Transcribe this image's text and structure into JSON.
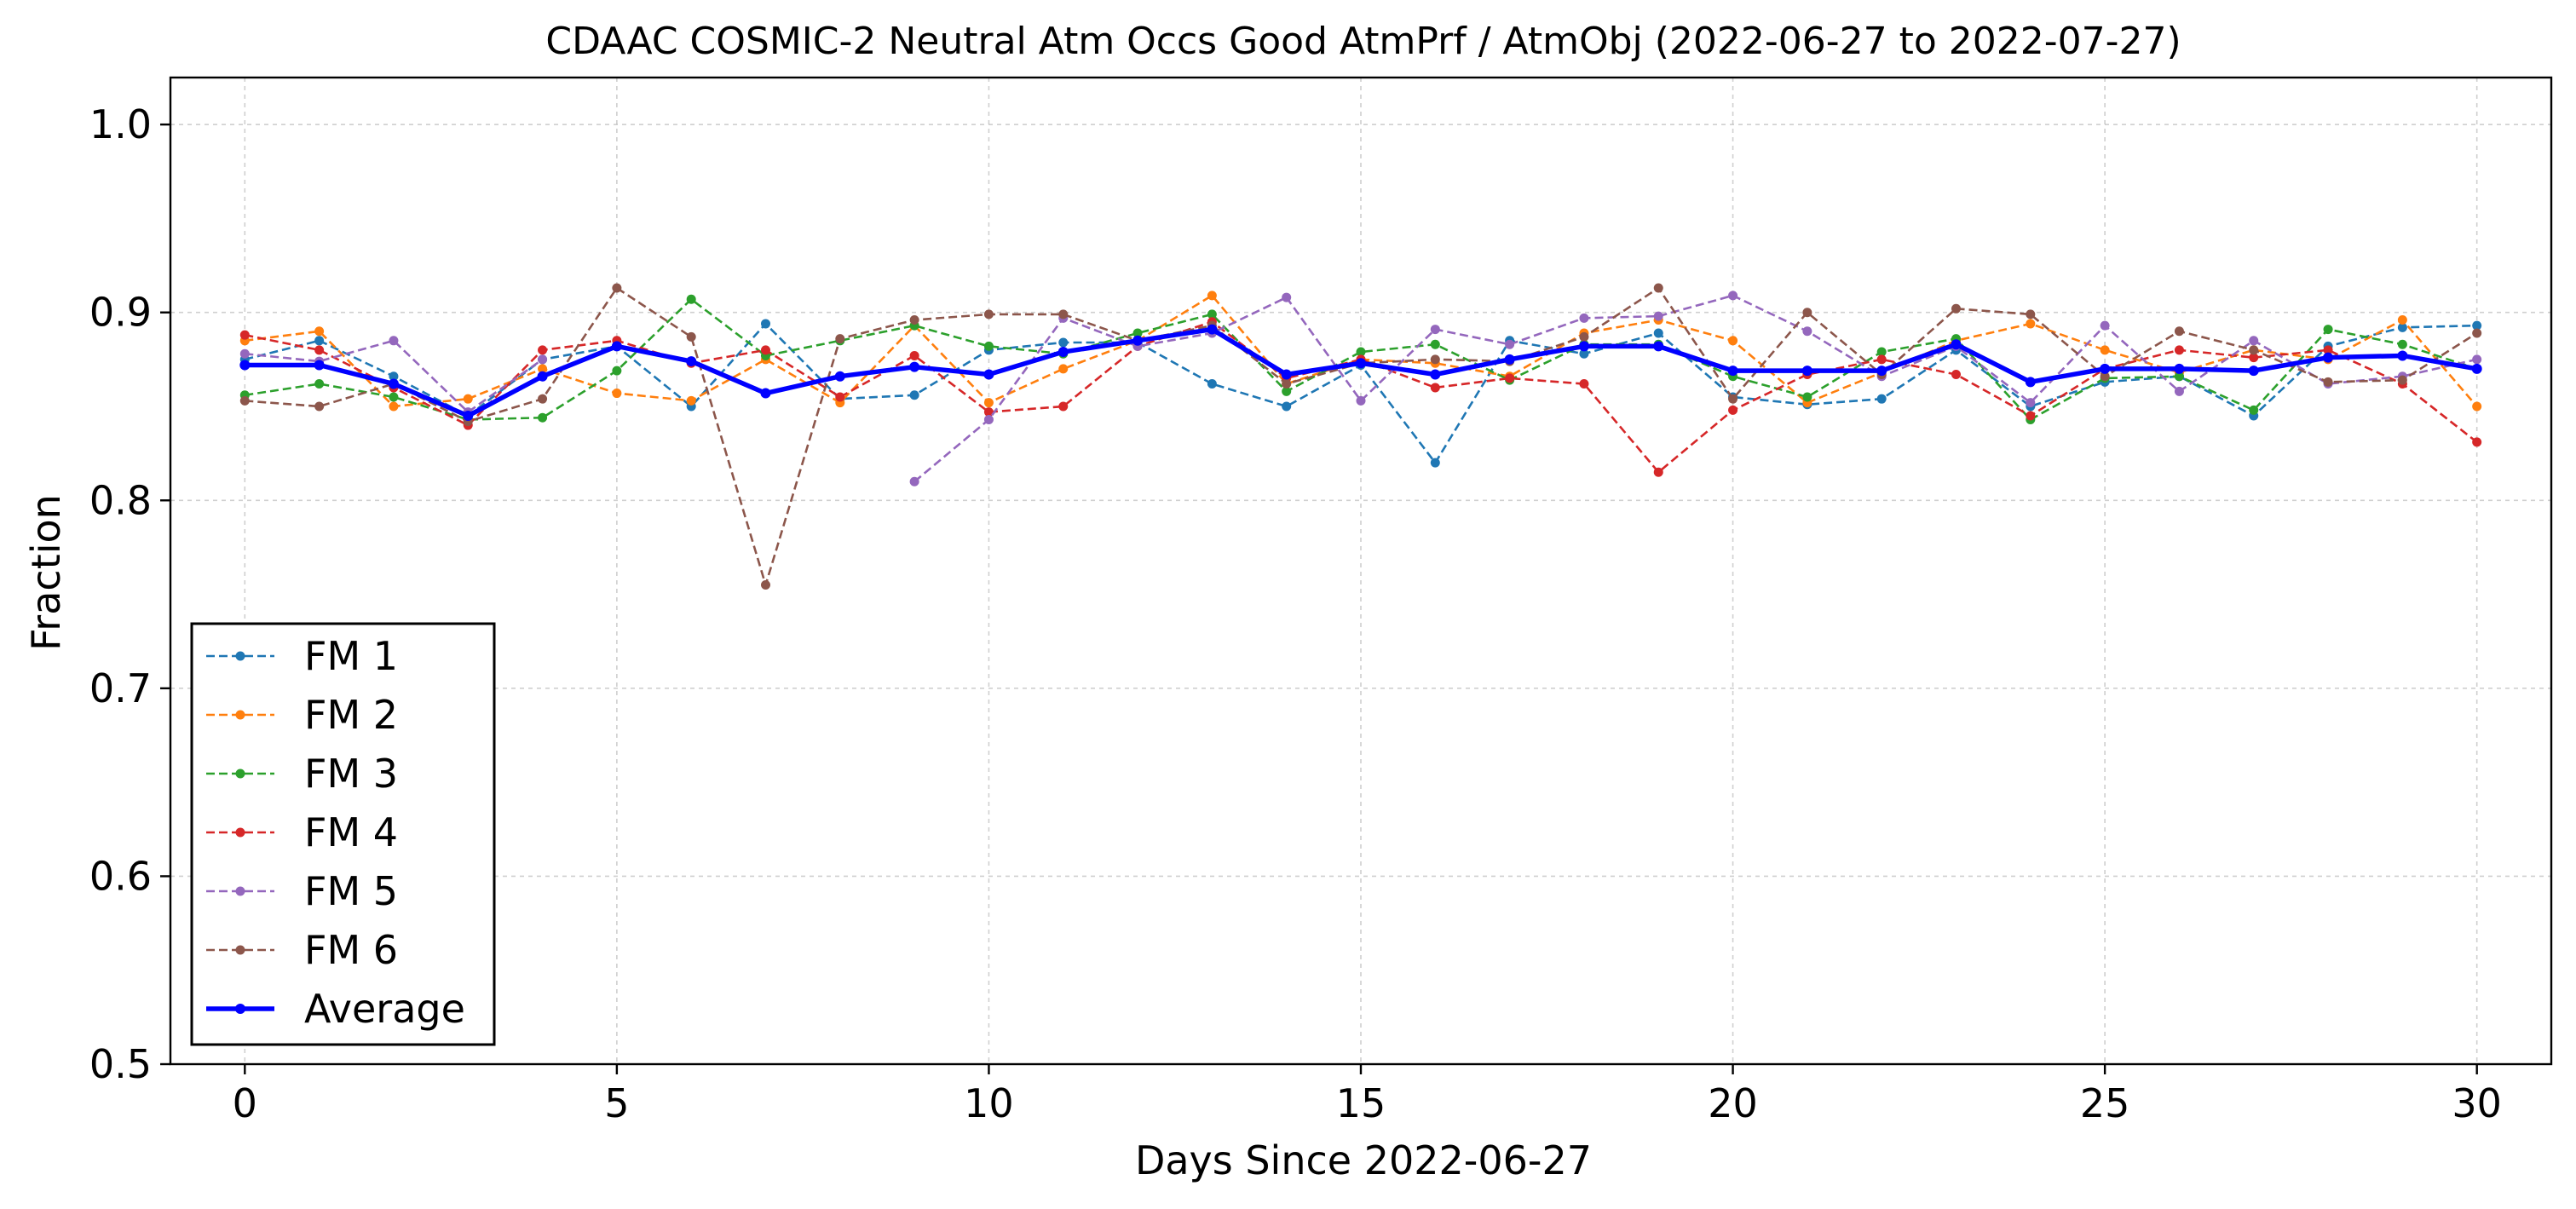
{
  "chart_data": {
    "type": "line",
    "title": "CDAAC COSMIC-2 Neutral Atm Occs Good AtmPrf / AtmObj (2022-06-27 to 2022-07-27)",
    "xlabel": "Days Since 2022-06-27",
    "ylabel": "Fraction",
    "xlim": [
      -1,
      31
    ],
    "ylim": [
      0.5,
      1.025
    ],
    "xticks": [
      0,
      5,
      10,
      15,
      20,
      25,
      30
    ],
    "yticks": [
      0.5,
      0.6,
      0.7,
      0.8,
      0.9,
      1.0
    ],
    "xtick_labels": [
      "0",
      "5",
      "10",
      "15",
      "20",
      "25",
      "30"
    ],
    "ytick_labels": [
      "0.5",
      "0.6",
      "0.7",
      "0.8",
      "0.9",
      "1.0"
    ],
    "grid": true,
    "legend_position": "lower-left",
    "x": [
      0,
      1,
      2,
      3,
      4,
      5,
      6,
      7,
      8,
      9,
      10,
      11,
      12,
      13,
      14,
      15,
      16,
      17,
      18,
      19,
      20,
      21,
      22,
      23,
      24,
      25,
      26,
      27,
      28,
      29,
      30
    ],
    "series": [
      {
        "name": "FM 1",
        "color": "#1f77b4",
        "style": "dashed",
        "values": [
          0.875,
          0.885,
          0.866,
          0.845,
          0.875,
          0.882,
          0.85,
          0.894,
          0.854,
          0.856,
          0.88,
          0.884,
          0.884,
          0.862,
          0.85,
          0.872,
          0.82,
          0.885,
          0.878,
          0.889,
          0.855,
          0.851,
          0.854,
          0.88,
          0.85,
          0.863,
          0.866,
          0.845,
          0.882,
          0.892,
          0.893
        ]
      },
      {
        "name": "FM 2",
        "color": "#ff7f0e",
        "style": "dashed",
        "values": [
          0.885,
          0.89,
          0.85,
          0.854,
          0.87,
          0.857,
          0.853,
          0.875,
          0.852,
          0.893,
          0.852,
          0.87,
          0.885,
          0.909,
          0.862,
          0.875,
          0.873,
          0.866,
          0.889,
          0.896,
          0.885,
          0.852,
          0.868,
          0.885,
          0.894,
          0.88,
          0.868,
          0.88,
          0.875,
          0.896,
          0.85
        ]
      },
      {
        "name": "FM 3",
        "color": "#2ca02c",
        "style": "dashed",
        "values": [
          0.856,
          0.862,
          0.855,
          0.843,
          0.844,
          0.869,
          0.907,
          0.877,
          0.885,
          0.893,
          0.882,
          0.878,
          0.889,
          0.899,
          0.858,
          0.879,
          0.883,
          0.864,
          0.883,
          0.883,
          0.866,
          0.855,
          0.879,
          0.886,
          0.843,
          0.865,
          0.866,
          0.848,
          0.891,
          0.883,
          0.87
        ]
      },
      {
        "name": "FM 4",
        "color": "#d62728",
        "style": "dashed",
        "values": [
          0.888,
          0.88,
          0.86,
          0.84,
          0.88,
          0.885,
          0.873,
          0.88,
          0.855,
          0.877,
          0.847,
          0.85,
          0.882,
          0.895,
          0.865,
          0.875,
          0.86,
          0.865,
          0.862,
          0.815,
          0.848,
          0.867,
          0.875,
          0.867,
          0.845,
          0.87,
          0.88,
          0.876,
          0.88,
          0.862,
          0.831
        ]
      },
      {
        "name": "FM 5",
        "color": "#9467bd",
        "style": "dashed",
        "values": [
          0.878,
          0.874,
          0.885,
          0.847,
          0.875,
          null,
          null,
          null,
          null,
          0.81,
          0.843,
          0.897,
          0.882,
          0.889,
          0.908,
          0.853,
          0.891,
          0.883,
          0.897,
          0.898,
          0.909,
          0.89,
          0.866,
          0.882,
          0.852,
          0.893,
          0.858,
          0.885,
          0.862,
          0.866,
          0.875
        ]
      },
      {
        "name": "FM 6",
        "color": "#8c564b",
        "style": "dashed",
        "values": [
          0.853,
          0.85,
          0.862,
          0.842,
          0.854,
          0.913,
          0.887,
          0.755,
          0.886,
          0.896,
          0.899,
          0.899,
          0.885,
          0.893,
          0.862,
          0.873,
          0.875,
          0.874,
          0.887,
          0.913,
          0.854,
          0.9,
          0.867,
          0.902,
          0.899,
          0.866,
          0.89,
          0.88,
          0.863,
          0.864,
          0.889
        ]
      },
      {
        "name": "Average",
        "color": "#0000ff",
        "style": "solid",
        "values": [
          0.872,
          0.872,
          0.862,
          0.845,
          0.866,
          0.882,
          0.874,
          0.857,
          0.866,
          0.871,
          0.867,
          0.879,
          0.885,
          0.891,
          0.867,
          0.873,
          0.867,
          0.875,
          0.882,
          0.882,
          0.869,
          0.869,
          0.869,
          0.883,
          0.863,
          0.87,
          0.87,
          0.869,
          0.876,
          0.877,
          0.87
        ]
      }
    ]
  }
}
